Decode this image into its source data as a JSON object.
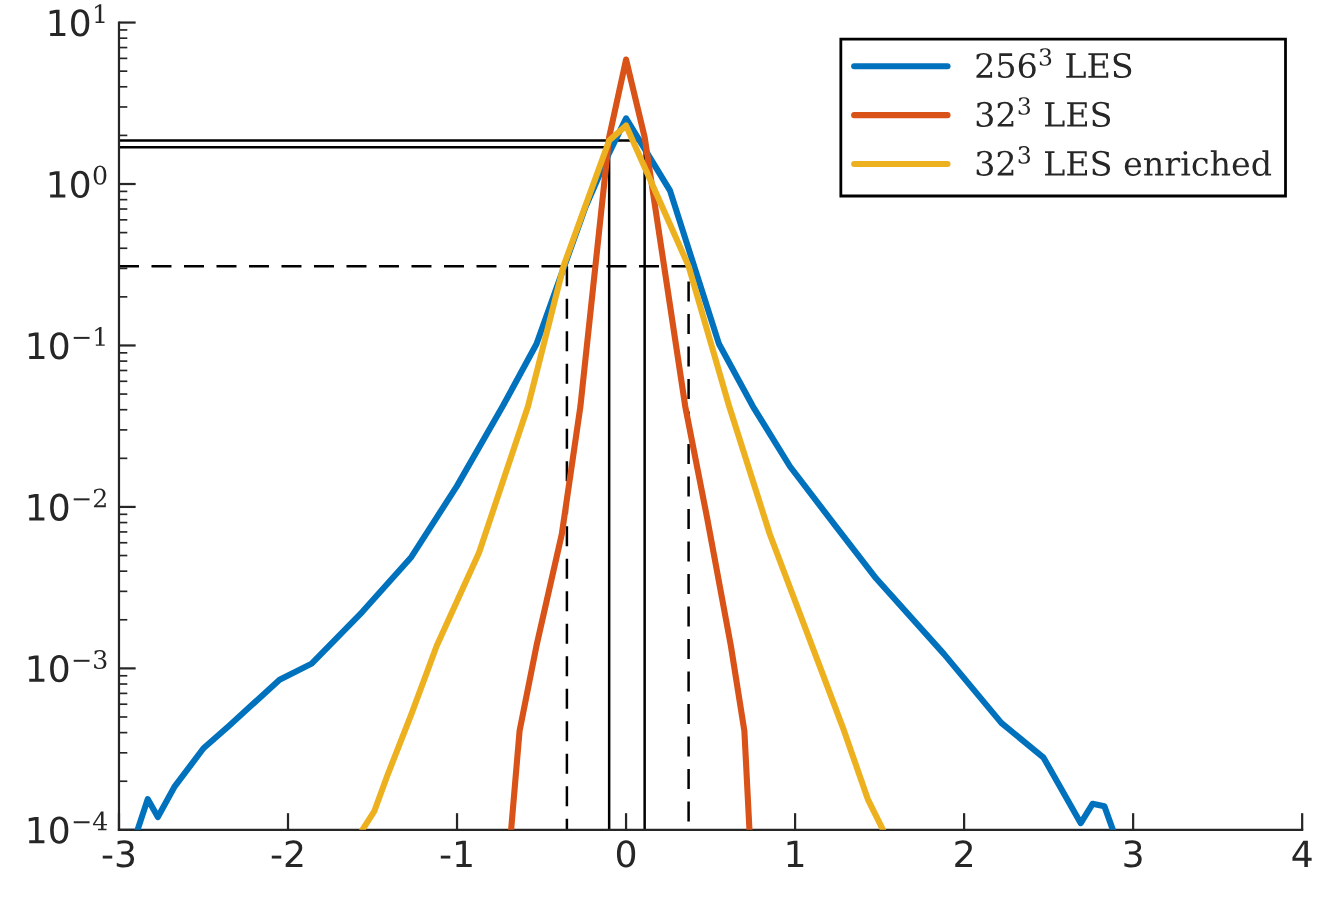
{
  "chart_data": {
    "type": "line",
    "log": "y",
    "xlim": [
      -3,
      4
    ],
    "ylim": [
      0.0001,
      10
    ],
    "xticks": [
      -3,
      -2,
      -1,
      0,
      1,
      2,
      3,
      4
    ],
    "yticks": [
      {
        "value": 0.0001,
        "label": "10$^{−4}$"
      },
      {
        "value": 0.001,
        "label": "10$^{−3}$"
      },
      {
        "value": 0.01,
        "label": "10$^{−2}$"
      },
      {
        "value": 0.1,
        "label": "10$^{−1}$"
      },
      {
        "value": 1,
        "label": "10$^{0}$"
      },
      {
        "value": 10,
        "label": "10$^{1}$"
      }
    ],
    "grid": false,
    "legend": "top right",
    "marker": "none",
    "series": [
      {
        "name": "256$^{3}$ LES",
        "color": "#0072bd",
        "x": [
          -2.89,
          -2.83,
          -2.77,
          -2.67,
          -2.5,
          -2.35,
          -2.05,
          -1.86,
          -1.56,
          -1.27,
          -1.0,
          -0.73,
          -0.53,
          -0.24,
          -0.11,
          0,
          0.26,
          0.55,
          0.75,
          0.97,
          1.24,
          1.48,
          1.88,
          2.22,
          2.47,
          2.69,
          2.76,
          2.83,
          2.88
        ],
        "values": [
          0.0001,
          0.000155,
          0.00012,
          0.000186,
          0.00032,
          0.00044,
          0.00085,
          0.00107,
          0.00224,
          0.0049,
          0.0135,
          0.042,
          0.102,
          0.72,
          1.48,
          2.55,
          0.91,
          0.102,
          0.042,
          0.0178,
          0.0076,
          0.0036,
          0.00123,
          0.00046,
          0.00028,
          0.00011,
          0.000145,
          0.00014,
          0.0001
        ]
      },
      {
        "name": "32$^{3}$ LES",
        "color": "#d95319",
        "x": [
          -0.68,
          -0.63,
          -0.53,
          -0.38,
          -0.27,
          -0.1,
          0,
          0.11,
          0.35,
          0.48,
          0.62,
          0.7,
          0.73
        ],
        "values": [
          0.0001,
          0.00041,
          0.00138,
          0.0068,
          0.042,
          1.95,
          5.9,
          1.95,
          0.042,
          0.0085,
          0.00138,
          0.00041,
          0.0001
        ]
      },
      {
        "name": "32$^{3}$ LES enriched",
        "color": "#edb120",
        "x": [
          -1.56,
          -1.49,
          -1.41,
          -1.27,
          -1.12,
          -0.87,
          -0.58,
          -0.37,
          -0.1,
          0,
          0.37,
          0.61,
          0.85,
          1.14,
          1.29,
          1.43,
          1.52
        ],
        "values": [
          0.0001,
          0.00013,
          0.00022,
          0.00052,
          0.00138,
          0.0052,
          0.042,
          0.31,
          1.86,
          2.3,
          0.31,
          0.042,
          0.0068,
          0.00107,
          0.00041,
          0.000155,
          0.0001
        ]
      },
      {
        "color": "#000000",
        "line_style": "solid",
        "x": [
          -3,
          0.11,
          0.11
        ],
        "values": [
          1.86,
          1.86,
          0.0001
        ]
      },
      {
        "color": "#000000",
        "line_style": "solid",
        "x": [
          -3,
          -0.1,
          -0.1
        ],
        "values": [
          1.69,
          1.69,
          0.0001
        ]
      },
      {
        "color": "#000000",
        "line_style": "dashed",
        "x": [
          -3,
          0.37,
          0.37
        ],
        "values": [
          0.31,
          0.31,
          0.0001
        ]
      },
      {
        "color": "#000000",
        "line_style": "dashed",
        "x": [
          -0.35,
          -0.35
        ],
        "values": [
          0.31,
          0.0001
        ]
      }
    ]
  }
}
